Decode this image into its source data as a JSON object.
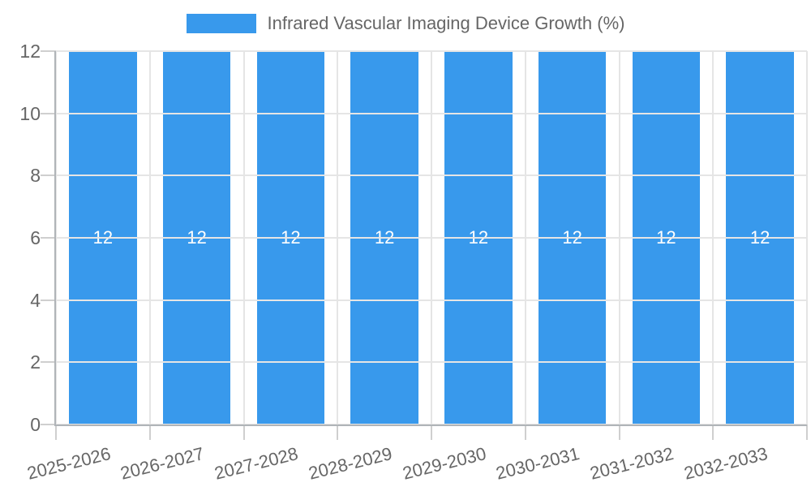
{
  "chart_data": {
    "type": "bar",
    "title": "Infrared Vascular Imaging Device Growth (%)",
    "categories": [
      "2025-2026",
      "2026-2027",
      "2027-2028",
      "2028-2029",
      "2029-2030",
      "2030-2031",
      "2031-2032",
      "2032-2033"
    ],
    "series": [
      {
        "name": "Infrared Vascular Imaging Device Growth (%)",
        "values": [
          12,
          12,
          12,
          12,
          12,
          12,
          12,
          12
        ]
      }
    ],
    "bar_value_labels": [
      "12",
      "12",
      "12",
      "12",
      "12",
      "12",
      "12",
      "12"
    ],
    "xlabel": "",
    "ylabel": "",
    "ylim": [
      0,
      12
    ],
    "yticks": [
      0,
      2,
      4,
      6,
      8,
      10,
      12
    ],
    "grid": true,
    "legend_position": "top",
    "colors": {
      "bar": "#3899EC",
      "bar_label": "#ffffff",
      "axis_text": "#666666",
      "gridline": "#e5e5e5",
      "tick_mark": "#cfcfcf",
      "axis_border": "#b0b4b8"
    }
  }
}
